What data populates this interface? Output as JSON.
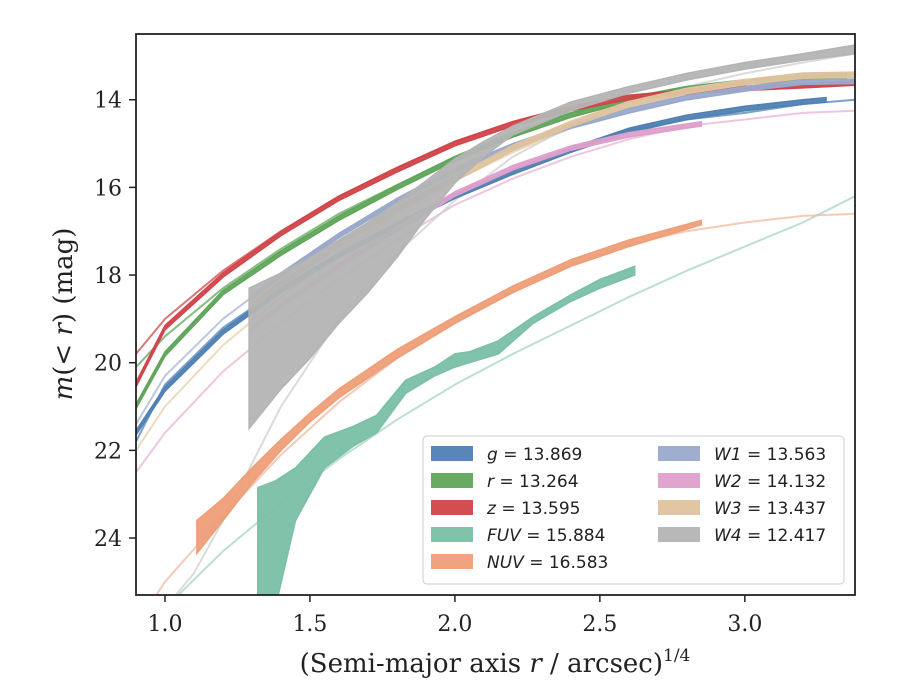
{
  "chart_data": {
    "type": "line",
    "xlabel_main": "(Semi-major axis ",
    "xlabel_r": "r",
    "xlabel_tail": " / arcsec)",
    "xlabel_sup": "1/4",
    "ylabel_m": "m",
    "ylabel_open": "(< ",
    "ylabel_r": "r",
    "ylabel_close": ") (mag)",
    "xlim": [
      0.9,
      3.38
    ],
    "ylim": [
      25.3,
      12.5
    ],
    "y_inverted": true,
    "xticks": [
      1.0,
      1.5,
      2.0,
      2.5,
      3.0
    ],
    "xtick_labels": [
      "1.0",
      "1.5",
      "2.0",
      "2.5",
      "3.0"
    ],
    "yticks": [
      14,
      16,
      18,
      20,
      22,
      24
    ],
    "ytick_labels": [
      "14",
      "16",
      "18",
      "20",
      "22",
      "24"
    ],
    "grid": false,
    "legend_position": "bottom-right",
    "series": [
      {
        "name": "g",
        "value": "13.869",
        "color": "#4f81b3",
        "fit_color": "#4f81b3",
        "fit": [
          [
            0.9,
            21.8
          ],
          [
            1.0,
            20.5
          ],
          [
            1.2,
            19.2
          ],
          [
            1.4,
            18.3
          ],
          [
            1.6,
            17.5
          ],
          [
            1.8,
            16.8
          ],
          [
            2.0,
            16.2
          ],
          [
            2.2,
            15.6
          ],
          [
            2.4,
            15.1
          ],
          [
            2.6,
            14.7
          ],
          [
            2.8,
            14.45
          ],
          [
            3.0,
            14.3
          ],
          [
            3.2,
            14.1
          ],
          [
            3.38,
            14.0
          ]
        ],
        "data": [
          [
            0.9,
            21.6
          ],
          [
            1.0,
            20.6
          ],
          [
            1.2,
            19.3
          ],
          [
            1.4,
            18.35
          ],
          [
            1.6,
            17.55
          ],
          [
            1.8,
            16.85
          ],
          [
            2.0,
            16.2
          ],
          [
            2.2,
            15.65
          ],
          [
            2.4,
            15.15
          ],
          [
            2.6,
            14.7
          ],
          [
            2.8,
            14.4
          ],
          [
            3.0,
            14.2
          ],
          [
            3.2,
            14.05
          ],
          [
            3.28,
            14.0
          ]
        ],
        "band": 0.05
      },
      {
        "name": "r",
        "value": "13.264",
        "color": "#5fa55a",
        "fit_color": "#5fa55a",
        "fit": [
          [
            0.9,
            20.1
          ],
          [
            1.0,
            19.4
          ],
          [
            1.2,
            18.3
          ],
          [
            1.4,
            17.4
          ],
          [
            1.6,
            16.6
          ],
          [
            1.8,
            15.95
          ],
          [
            2.0,
            15.3
          ],
          [
            2.2,
            14.75
          ],
          [
            2.4,
            14.3
          ],
          [
            2.6,
            13.95
          ],
          [
            2.8,
            13.7
          ],
          [
            3.0,
            13.55
          ],
          [
            3.2,
            13.45
          ],
          [
            3.38,
            13.4
          ]
        ],
        "data": [
          [
            0.9,
            21.0
          ],
          [
            1.0,
            19.8
          ],
          [
            1.2,
            18.4
          ],
          [
            1.4,
            17.5
          ],
          [
            1.6,
            16.7
          ],
          [
            1.8,
            16.0
          ],
          [
            2.0,
            15.35
          ],
          [
            2.2,
            14.8
          ],
          [
            2.4,
            14.35
          ],
          [
            2.6,
            14.0
          ],
          [
            2.8,
            13.75
          ],
          [
            3.0,
            13.6
          ],
          [
            3.2,
            13.5
          ],
          [
            3.35,
            13.45
          ]
        ],
        "band": 0.05
      },
      {
        "name": "z",
        "value": "13.595",
        "color": "#d0454a",
        "fit_color": "#d0454a",
        "fit": [
          [
            0.9,
            19.8
          ],
          [
            1.0,
            19.0
          ],
          [
            1.2,
            17.9
          ],
          [
            1.4,
            17.0
          ],
          [
            1.6,
            16.2
          ],
          [
            1.8,
            15.55
          ],
          [
            2.0,
            14.95
          ],
          [
            2.2,
            14.5
          ],
          [
            2.4,
            14.15
          ],
          [
            2.6,
            13.9
          ],
          [
            2.8,
            13.8
          ],
          [
            3.0,
            13.72
          ],
          [
            3.2,
            13.68
          ],
          [
            3.38,
            13.62
          ]
        ],
        "data": [
          [
            0.9,
            20.5
          ],
          [
            1.0,
            19.2
          ],
          [
            1.2,
            18.0
          ],
          [
            1.4,
            17.05
          ],
          [
            1.6,
            16.25
          ],
          [
            1.8,
            15.6
          ],
          [
            2.0,
            15.0
          ],
          [
            2.2,
            14.55
          ],
          [
            2.4,
            14.2
          ],
          [
            2.6,
            13.95
          ],
          [
            2.8,
            13.82
          ],
          [
            3.0,
            13.74
          ],
          [
            3.2,
            13.68
          ],
          [
            3.38,
            13.62
          ]
        ],
        "band": 0.05
      },
      {
        "name": "FUV",
        "value": "15.884",
        "color": "#7abfa7",
        "fit_color": "#a8d3c2",
        "fit": [
          [
            1.0,
            25.6
          ],
          [
            1.2,
            24.3
          ],
          [
            1.4,
            23.2
          ],
          [
            1.6,
            22.2
          ],
          [
            1.8,
            21.3
          ],
          [
            2.0,
            20.5
          ],
          [
            2.2,
            19.8
          ],
          [
            2.4,
            19.15
          ],
          [
            2.6,
            18.5
          ],
          [
            2.8,
            17.9
          ],
          [
            3.0,
            17.35
          ],
          [
            3.2,
            16.8
          ],
          [
            3.38,
            16.2
          ]
        ],
        "data_lower": [
          [
            1.32,
            25.6
          ],
          [
            1.38,
            25.6
          ],
          [
            1.45,
            23.6
          ],
          [
            1.55,
            22.4
          ],
          [
            1.65,
            21.9
          ],
          [
            1.73,
            21.6
          ],
          [
            1.83,
            20.7
          ],
          [
            1.93,
            20.3
          ],
          [
            2.0,
            20.1
          ],
          [
            2.05,
            20.0
          ],
          [
            2.15,
            19.8
          ],
          [
            2.27,
            19.1
          ],
          [
            2.4,
            18.6
          ],
          [
            2.5,
            18.3
          ],
          [
            2.62,
            18.0
          ]
        ],
        "data_upper": [
          [
            1.32,
            22.85
          ],
          [
            1.38,
            22.7
          ],
          [
            1.45,
            22.4
          ],
          [
            1.55,
            21.7
          ],
          [
            1.65,
            21.45
          ],
          [
            1.73,
            21.2
          ],
          [
            1.83,
            20.4
          ],
          [
            1.93,
            20.1
          ],
          [
            2.0,
            19.8
          ],
          [
            2.05,
            19.75
          ],
          [
            2.15,
            19.5
          ],
          [
            2.27,
            18.95
          ],
          [
            2.4,
            18.45
          ],
          [
            2.5,
            18.1
          ],
          [
            2.62,
            17.8
          ]
        ]
      },
      {
        "name": "NUV",
        "value": "16.583",
        "color": "#ee9e78",
        "fit_color": "#f1b89d",
        "fit": [
          [
            0.96,
            25.4
          ],
          [
            1.0,
            25.0
          ],
          [
            1.2,
            23.5
          ],
          [
            1.4,
            22.1
          ],
          [
            1.6,
            20.9
          ],
          [
            1.8,
            19.9
          ],
          [
            2.0,
            19.1
          ],
          [
            2.2,
            18.35
          ],
          [
            2.4,
            17.75
          ],
          [
            2.6,
            17.3
          ],
          [
            2.8,
            17.0
          ],
          [
            3.0,
            16.8
          ],
          [
            3.2,
            16.65
          ],
          [
            3.38,
            16.6
          ]
        ],
        "data_lower": [
          [
            1.11,
            24.35
          ],
          [
            1.2,
            23.6
          ],
          [
            1.3,
            22.75
          ],
          [
            1.4,
            22.0
          ],
          [
            1.5,
            21.35
          ],
          [
            1.6,
            20.8
          ],
          [
            1.8,
            19.9
          ],
          [
            2.0,
            19.1
          ],
          [
            2.2,
            18.4
          ],
          [
            2.4,
            17.8
          ],
          [
            2.6,
            17.35
          ],
          [
            2.85,
            16.85
          ]
        ],
        "data_upper": [
          [
            1.11,
            23.6
          ],
          [
            1.2,
            23.1
          ],
          [
            1.3,
            22.4
          ],
          [
            1.4,
            21.75
          ],
          [
            1.5,
            21.15
          ],
          [
            1.6,
            20.6
          ],
          [
            1.8,
            19.7
          ],
          [
            2.0,
            18.95
          ],
          [
            2.2,
            18.25
          ],
          [
            2.4,
            17.65
          ],
          [
            2.6,
            17.2
          ],
          [
            2.85,
            16.75
          ]
        ]
      },
      {
        "name": "W1",
        "value": "13.563",
        "color": "#9aa9cb",
        "fit_color": "#a7b4d2",
        "fit": [
          [
            0.9,
            21.4
          ],
          [
            1.0,
            20.3
          ],
          [
            1.2,
            19.0
          ],
          [
            1.4,
            18.0
          ],
          [
            1.6,
            17.1
          ],
          [
            1.8,
            16.3
          ],
          [
            2.0,
            15.65
          ],
          [
            2.2,
            15.1
          ],
          [
            2.4,
            14.65
          ],
          [
            2.6,
            14.3
          ],
          [
            2.8,
            14.0
          ],
          [
            3.0,
            13.8
          ],
          [
            3.2,
            13.65
          ],
          [
            3.38,
            13.6
          ]
        ],
        "data": [
          [
            1.3,
            18.5
          ],
          [
            1.4,
            18.0
          ],
          [
            1.6,
            17.1
          ],
          [
            1.8,
            16.3
          ],
          [
            2.0,
            15.6
          ],
          [
            2.2,
            15.05
          ],
          [
            2.4,
            14.6
          ],
          [
            2.6,
            14.25
          ],
          [
            2.8,
            13.95
          ],
          [
            3.0,
            13.75
          ],
          [
            3.2,
            13.6
          ],
          [
            3.38,
            13.58
          ]
        ],
        "band": 0.05
      },
      {
        "name": "W2",
        "value": "14.132",
        "color": "#de9fcb",
        "fit_color": "#e8b3d6",
        "fit": [
          [
            0.9,
            22.5
          ],
          [
            1.0,
            21.6
          ],
          [
            1.2,
            20.2
          ],
          [
            1.4,
            19.1
          ],
          [
            1.6,
            18.1
          ],
          [
            1.8,
            17.2
          ],
          [
            2.0,
            16.4
          ],
          [
            2.2,
            15.8
          ],
          [
            2.4,
            15.3
          ],
          [
            2.6,
            14.9
          ],
          [
            2.8,
            14.6
          ],
          [
            3.0,
            14.45
          ],
          [
            3.2,
            14.3
          ],
          [
            3.38,
            14.25
          ]
        ],
        "data": [
          [
            1.3,
            19.2
          ],
          [
            1.4,
            18.7
          ],
          [
            1.6,
            17.8
          ],
          [
            1.8,
            16.95
          ],
          [
            2.0,
            16.15
          ],
          [
            2.2,
            15.55
          ],
          [
            2.4,
            15.1
          ],
          [
            2.6,
            14.8
          ],
          [
            2.85,
            14.55
          ]
        ],
        "band": 0.05
      },
      {
        "name": "W3",
        "value": "13.437",
        "color": "#dfc39f",
        "fit_color": "#e6cfae",
        "fit": [
          [
            0.9,
            22.0
          ],
          [
            1.0,
            21.0
          ],
          [
            1.2,
            19.6
          ],
          [
            1.4,
            18.5
          ],
          [
            1.6,
            17.5
          ],
          [
            1.8,
            16.6
          ],
          [
            2.0,
            15.85
          ],
          [
            2.2,
            15.2
          ],
          [
            2.4,
            14.65
          ],
          [
            2.6,
            14.2
          ],
          [
            2.8,
            13.85
          ],
          [
            3.0,
            13.62
          ],
          [
            3.2,
            13.48
          ],
          [
            3.38,
            13.44
          ]
        ],
        "data": [
          [
            1.3,
            18.7
          ],
          [
            1.4,
            18.2
          ],
          [
            1.6,
            17.3
          ],
          [
            1.8,
            16.5
          ],
          [
            2.0,
            15.8
          ],
          [
            2.2,
            15.1
          ],
          [
            2.4,
            14.55
          ],
          [
            2.6,
            14.1
          ],
          [
            2.8,
            13.8
          ],
          [
            3.0,
            13.6
          ],
          [
            3.2,
            13.45
          ],
          [
            3.38,
            13.43
          ]
        ],
        "band": 0.06
      },
      {
        "name": "W4",
        "value": "12.417",
        "color": "#b4b4b4",
        "fit_color": "#cfcfcf",
        "fit": [
          [
            1.0,
            25.6
          ],
          [
            1.1,
            24.8
          ],
          [
            1.2,
            23.6
          ],
          [
            1.3,
            22.3
          ],
          [
            1.4,
            21.0
          ],
          [
            1.6,
            19.0
          ],
          [
            1.8,
            17.5
          ],
          [
            2.0,
            16.3
          ],
          [
            2.2,
            15.3
          ],
          [
            2.4,
            14.6
          ],
          [
            2.6,
            14.05
          ],
          [
            2.8,
            13.7
          ],
          [
            3.0,
            13.4
          ],
          [
            3.2,
            13.15
          ],
          [
            3.38,
            12.95
          ]
        ],
        "data_lower": [
          [
            1.29,
            21.5
          ],
          [
            1.4,
            20.6
          ],
          [
            1.5,
            19.9
          ],
          [
            1.6,
            19.1
          ],
          [
            1.7,
            18.4
          ],
          [
            1.8,
            17.6
          ],
          [
            1.9,
            16.7
          ],
          [
            2.0,
            15.9
          ],
          [
            2.1,
            15.3
          ],
          [
            2.2,
            14.8
          ],
          [
            2.4,
            14.25
          ],
          [
            2.6,
            13.85
          ],
          [
            2.8,
            13.55
          ],
          [
            3.0,
            13.3
          ],
          [
            3.2,
            13.1
          ],
          [
            3.38,
            12.95
          ]
        ],
        "data_upper": [
          [
            1.29,
            18.3
          ],
          [
            1.4,
            17.95
          ],
          [
            1.5,
            17.6
          ],
          [
            1.6,
            17.2
          ],
          [
            1.7,
            16.8
          ],
          [
            1.8,
            16.35
          ],
          [
            1.9,
            15.85
          ],
          [
            2.0,
            15.35
          ],
          [
            2.1,
            14.95
          ],
          [
            2.2,
            14.6
          ],
          [
            2.4,
            14.05
          ],
          [
            2.6,
            13.7
          ],
          [
            2.8,
            13.4
          ],
          [
            3.0,
            13.15
          ],
          [
            3.2,
            12.95
          ],
          [
            3.38,
            12.75
          ]
        ]
      }
    ]
  }
}
